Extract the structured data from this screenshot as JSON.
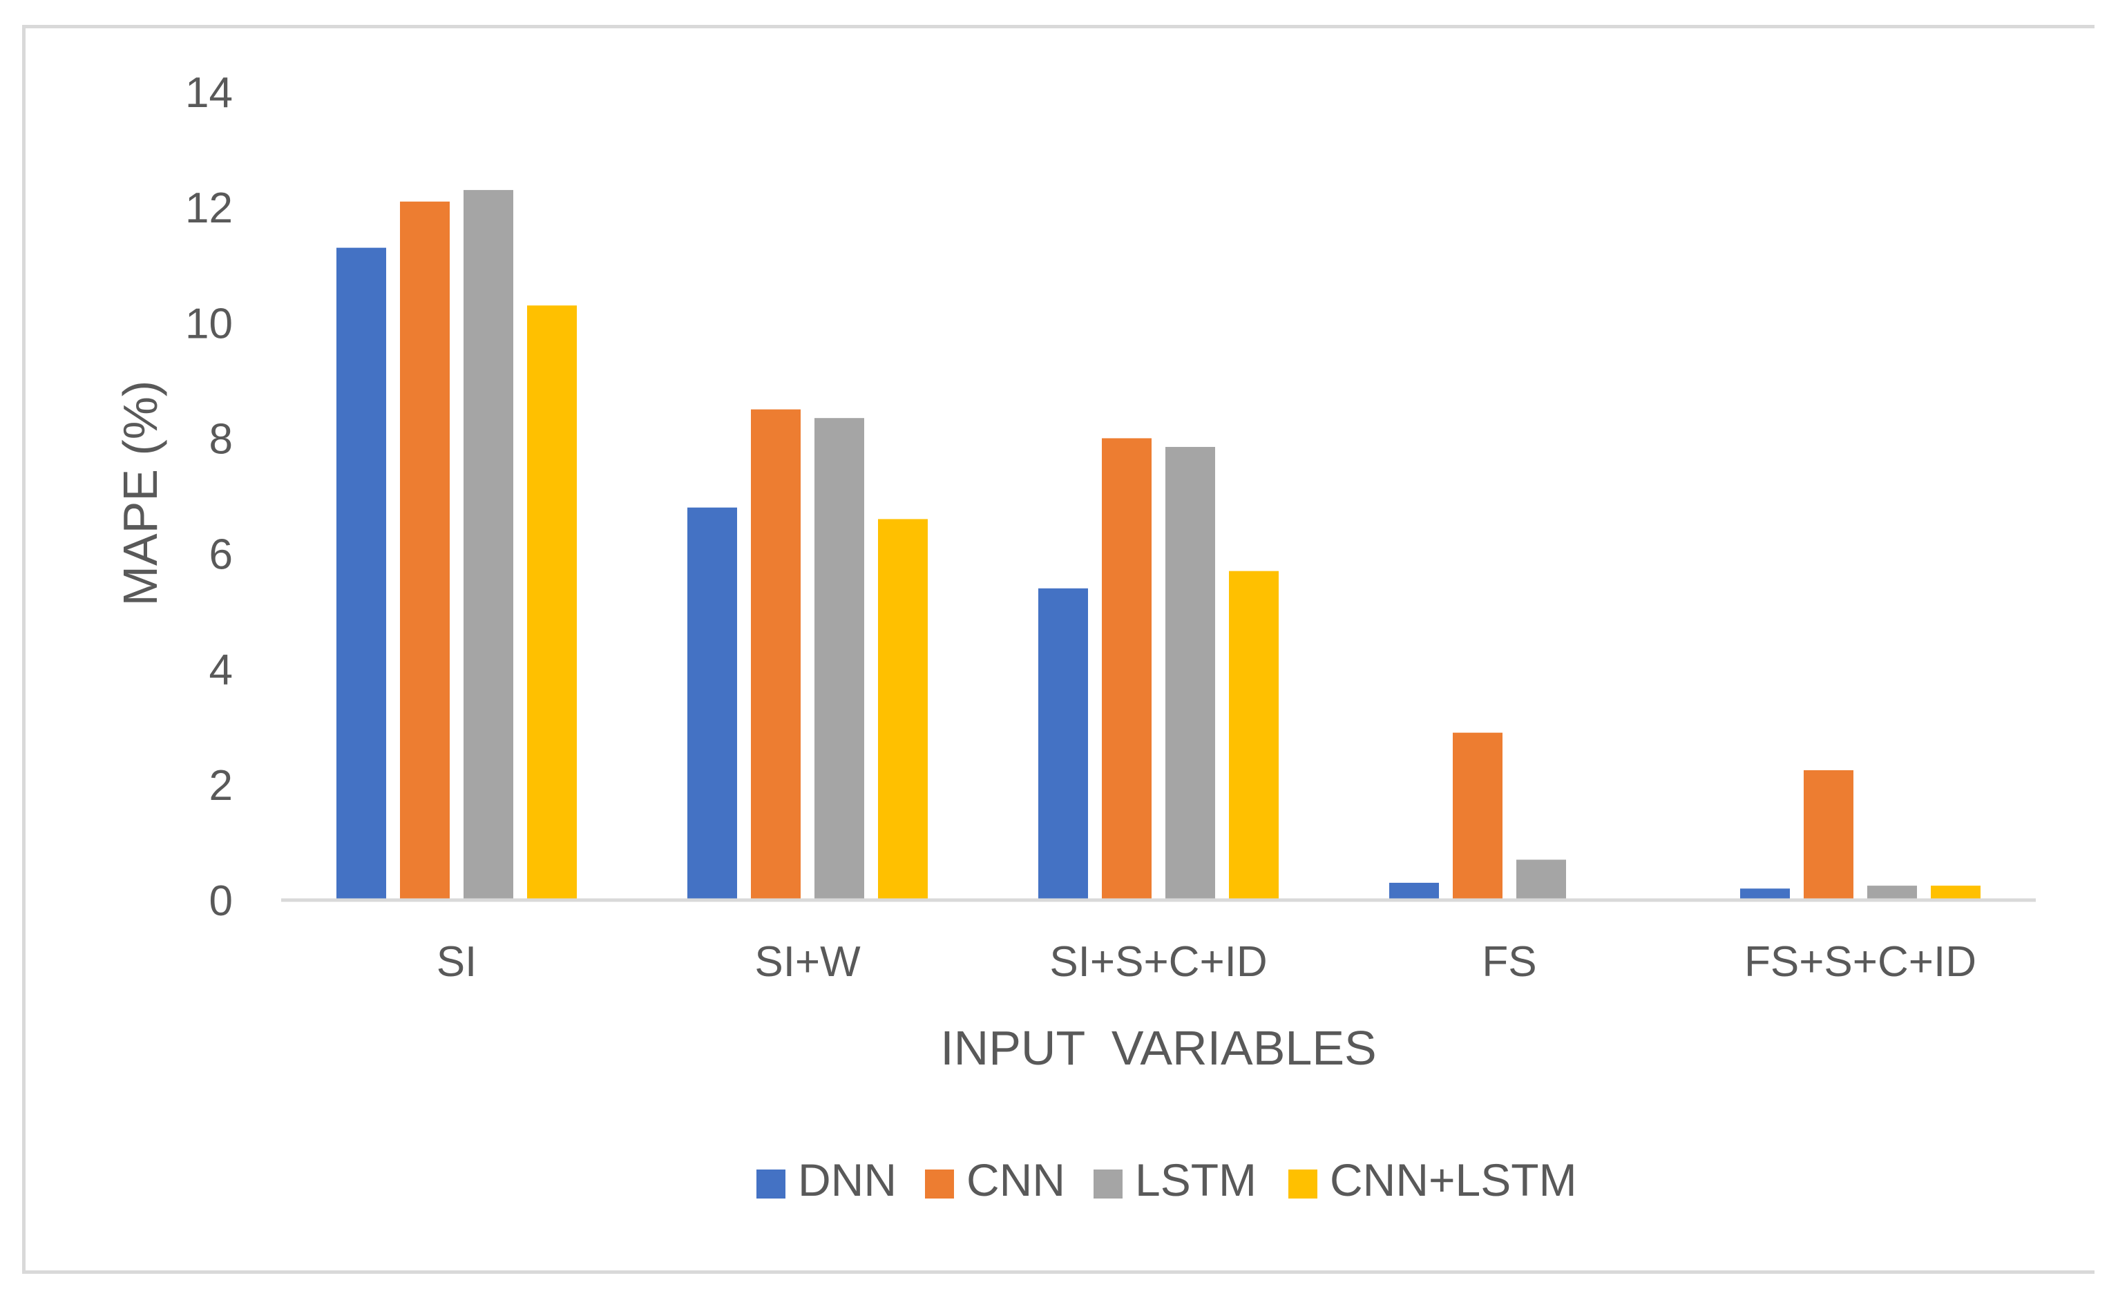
{
  "chart_data": {
    "type": "bar",
    "title": "",
    "xlabel": "INPUT  VARIABLES",
    "ylabel": "MAPE (%)",
    "ylim": [
      0,
      14
    ],
    "yticks": [
      0,
      2,
      4,
      6,
      8,
      10,
      12,
      14
    ],
    "grid": false,
    "legend_position": "bottom",
    "categories": [
      "SI",
      "SI+W",
      "SI+S+C+ID",
      "FS",
      "FS+S+C+ID"
    ],
    "series": [
      {
        "name": "DNN",
        "color": "#4472c4",
        "values": [
          11.3,
          6.8,
          5.4,
          0.3,
          0.2
        ]
      },
      {
        "name": "CNN",
        "color": "#ed7d31",
        "values": [
          12.1,
          8.5,
          8.0,
          2.9,
          2.25
        ]
      },
      {
        "name": "LSTM",
        "color": "#a5a5a5",
        "values": [
          12.3,
          8.35,
          7.85,
          0.7,
          0.25
        ]
      },
      {
        "name": "CNN+LSTM",
        "color": "#ffc000",
        "values": [
          10.3,
          6.6,
          5.7,
          0.0,
          0.25
        ]
      }
    ]
  }
}
